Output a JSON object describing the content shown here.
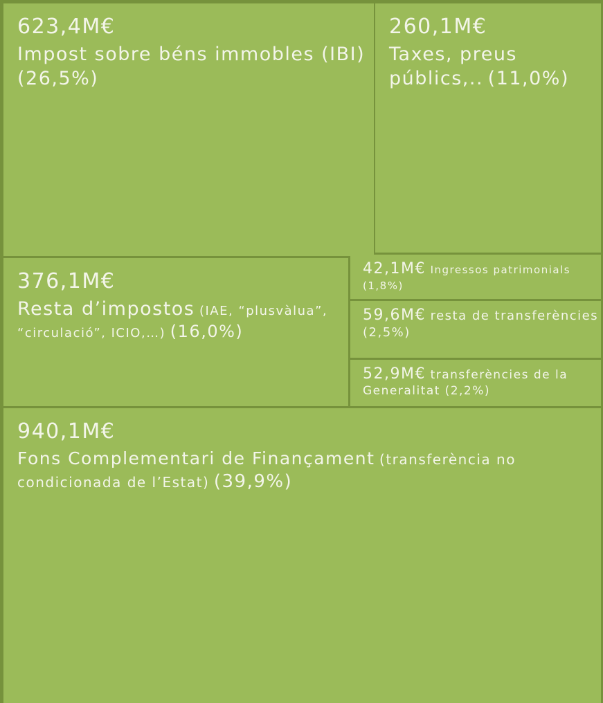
{
  "chart_data": {
    "type": "treemap",
    "categories": [
      "Impost sobre béns immobles (IBI)",
      "Taxes, preus públics,..",
      "Resta d’impostos",
      "Ingressos patrimonials",
      "resta de transferències",
      "transferències de la Generalitat",
      "Fons Complementari de Finançament"
    ],
    "notes": [
      null,
      null,
      "(IAE, “plusvàlua”, “circulació”, ICIO,…)",
      null,
      null,
      null,
      "(transferència no condicionada de l’Estat)"
    ],
    "values": [
      623.4,
      260.1,
      376.1,
      42.1,
      59.6,
      52.9,
      940.1
    ],
    "value_labels": [
      "623,4M€",
      "260,1M€",
      "376,1M€",
      "42,1M€",
      "59,6M€",
      "52,9M€",
      "940,1M€"
    ],
    "shares": [
      26.5,
      11.0,
      16.0,
      1.8,
      2.5,
      2.2,
      39.9
    ],
    "share_labels": [
      "(26,5%)",
      "(11,0%)",
      "(16,0%)",
      "(1,8%)",
      "(2,5%)",
      "(2,2%)",
      "(39,9%)"
    ],
    "color": "#9bbb59",
    "border_color": "#76923c"
  }
}
